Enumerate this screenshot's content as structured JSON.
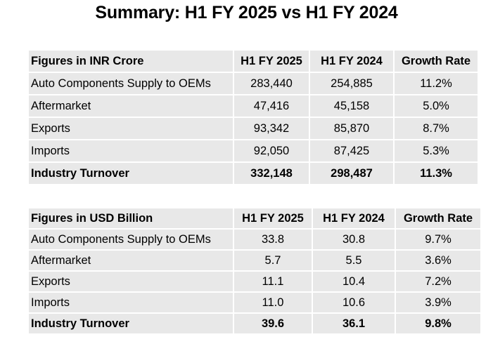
{
  "title": "Summary: H1 FY 2025 vs H1 FY 2024",
  "inr_table": {
    "header": [
      "Figures in INR Crore",
      "H1 FY 2025",
      "H1 FY 2024",
      "Growth Rate"
    ],
    "rows": [
      [
        "Auto Components Supply to OEMs",
        "283,440",
        "254,885",
        "11.2%"
      ],
      [
        "Aftermarket",
        "47,416",
        "45,158",
        "5.0%"
      ],
      [
        "Exports",
        "93,342",
        "85,870",
        "8.7%"
      ],
      [
        "Imports",
        "92,050",
        "87,425",
        "5.3%"
      ],
      [
        "Industry Turnover",
        "332,148",
        "298,487",
        "11.3%"
      ]
    ]
  },
  "usd_table": {
    "header": [
      "Figures in USD Billion",
      "H1 FY 2025",
      "H1 FY 2024",
      "Growth Rate"
    ],
    "rows": [
      [
        "Auto Components Supply to OEMs",
        "33.8",
        "30.8",
        "9.7%"
      ],
      [
        "Aftermarket",
        "5.7",
        "5.5",
        "3.6%"
      ],
      [
        "Exports",
        "11.1",
        "10.4",
        "7.2%"
      ],
      [
        "Imports",
        "11.0",
        "10.6",
        "3.9%"
      ],
      [
        "Industry Turnover",
        "39.6",
        "36.1",
        "9.8%"
      ]
    ]
  }
}
